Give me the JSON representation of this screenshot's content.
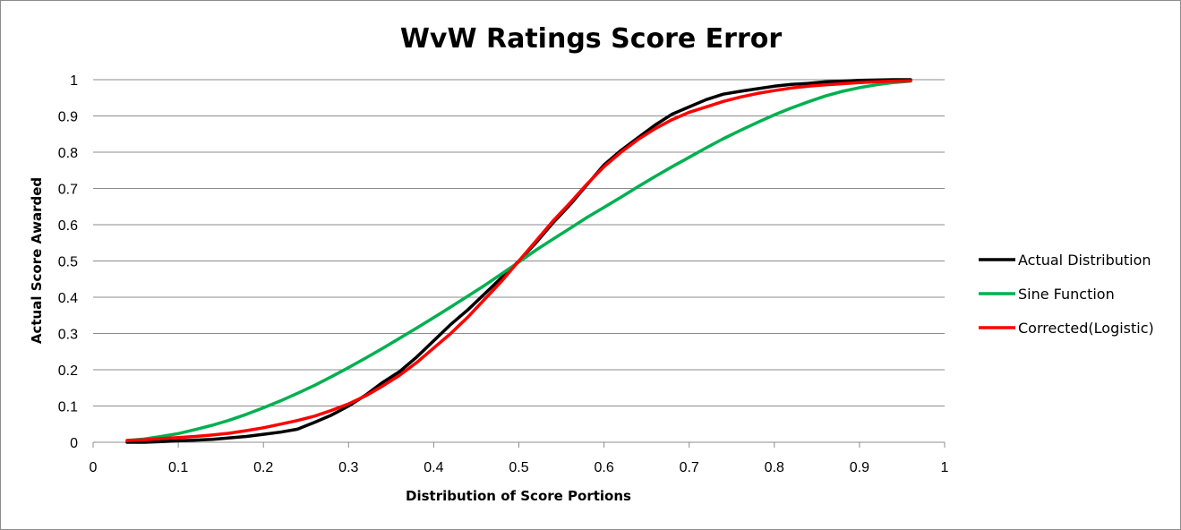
{
  "chart_data": {
    "type": "line",
    "title": "WvW Ratings Score Error",
    "xlabel": "Distribution of Score Portions",
    "ylabel": "Actual Score Awarded",
    "xlim": [
      0,
      1
    ],
    "ylim": [
      0,
      1
    ],
    "xticks": [
      "0",
      "0.1",
      "0.2",
      "0.3",
      "0.4",
      "0.5",
      "0.6",
      "0.7",
      "0.8",
      "0.9",
      "1"
    ],
    "yticks": [
      "0",
      "0.1",
      "0.2",
      "0.3",
      "0.4",
      "0.5",
      "0.6",
      "0.7",
      "0.8",
      "0.9",
      "1"
    ],
    "grid": "horizontal",
    "legend_position": "right",
    "series": [
      {
        "name": "Actual Distribution",
        "color": "#000000",
        "x": [
          0.04,
          0.06,
          0.08,
          0.1,
          0.12,
          0.14,
          0.16,
          0.18,
          0.2,
          0.22,
          0.24,
          0.26,
          0.28,
          0.3,
          0.32,
          0.34,
          0.36,
          0.38,
          0.4,
          0.42,
          0.44,
          0.46,
          0.48,
          0.5,
          0.52,
          0.54,
          0.56,
          0.58,
          0.6,
          0.62,
          0.64,
          0.66,
          0.68,
          0.7,
          0.72,
          0.74,
          0.76,
          0.78,
          0.8,
          0.82,
          0.84,
          0.86,
          0.88,
          0.9,
          0.92,
          0.94,
          0.96
        ],
        "y": [
          0.0,
          0.0,
          0.002,
          0.004,
          0.006,
          0.008,
          0.012,
          0.016,
          0.022,
          0.028,
          0.036,
          0.055,
          0.075,
          0.1,
          0.13,
          0.165,
          0.195,
          0.235,
          0.28,
          0.325,
          0.365,
          0.41,
          0.455,
          0.5,
          0.55,
          0.605,
          0.655,
          0.71,
          0.765,
          0.805,
          0.84,
          0.875,
          0.905,
          0.925,
          0.945,
          0.96,
          0.968,
          0.975,
          0.982,
          0.987,
          0.99,
          0.994,
          0.996,
          0.998,
          0.999,
          1.0,
          1.0
        ]
      },
      {
        "name": "Sine Function",
        "color": "#00b050",
        "x": [
          0.04,
          0.06,
          0.08,
          0.1,
          0.12,
          0.14,
          0.16,
          0.18,
          0.2,
          0.22,
          0.24,
          0.26,
          0.28,
          0.3,
          0.32,
          0.34,
          0.36,
          0.38,
          0.4,
          0.42,
          0.44,
          0.46,
          0.48,
          0.5,
          0.52,
          0.54,
          0.56,
          0.58,
          0.6,
          0.62,
          0.64,
          0.66,
          0.68,
          0.7,
          0.72,
          0.74,
          0.76,
          0.78,
          0.8,
          0.82,
          0.84,
          0.86,
          0.88,
          0.9,
          0.92,
          0.94,
          0.96
        ],
        "y": [
          0.005,
          0.009,
          0.016,
          0.024,
          0.035,
          0.047,
          0.061,
          0.077,
          0.095,
          0.114,
          0.135,
          0.157,
          0.181,
          0.206,
          0.232,
          0.259,
          0.287,
          0.315,
          0.344,
          0.373,
          0.403,
          0.433,
          0.465,
          0.497,
          0.53,
          0.56,
          0.59,
          0.62,
          0.648,
          0.676,
          0.705,
          0.733,
          0.76,
          0.786,
          0.812,
          0.837,
          0.86,
          0.882,
          0.903,
          0.922,
          0.939,
          0.955,
          0.968,
          0.978,
          0.986,
          0.992,
          0.996
        ]
      },
      {
        "name": "Corrected(Logistic)",
        "color": "#ff0000",
        "x": [
          0.04,
          0.06,
          0.08,
          0.1,
          0.12,
          0.14,
          0.16,
          0.18,
          0.2,
          0.22,
          0.24,
          0.26,
          0.28,
          0.3,
          0.32,
          0.34,
          0.36,
          0.38,
          0.4,
          0.42,
          0.44,
          0.46,
          0.48,
          0.5,
          0.52,
          0.54,
          0.56,
          0.58,
          0.6,
          0.62,
          0.64,
          0.66,
          0.68,
          0.7,
          0.72,
          0.74,
          0.76,
          0.78,
          0.8,
          0.82,
          0.84,
          0.86,
          0.88,
          0.9,
          0.92,
          0.94,
          0.96
        ],
        "y": [
          0.005,
          0.007,
          0.01,
          0.013,
          0.016,
          0.02,
          0.025,
          0.032,
          0.04,
          0.05,
          0.06,
          0.072,
          0.088,
          0.106,
          0.128,
          0.155,
          0.185,
          0.22,
          0.26,
          0.3,
          0.345,
          0.395,
          0.445,
          0.5,
          0.555,
          0.61,
          0.66,
          0.712,
          0.76,
          0.8,
          0.835,
          0.865,
          0.89,
          0.91,
          0.925,
          0.94,
          0.952,
          0.962,
          0.97,
          0.977,
          0.982,
          0.986,
          0.989,
          0.992,
          0.994,
          0.996,
          0.997
        ]
      }
    ]
  }
}
